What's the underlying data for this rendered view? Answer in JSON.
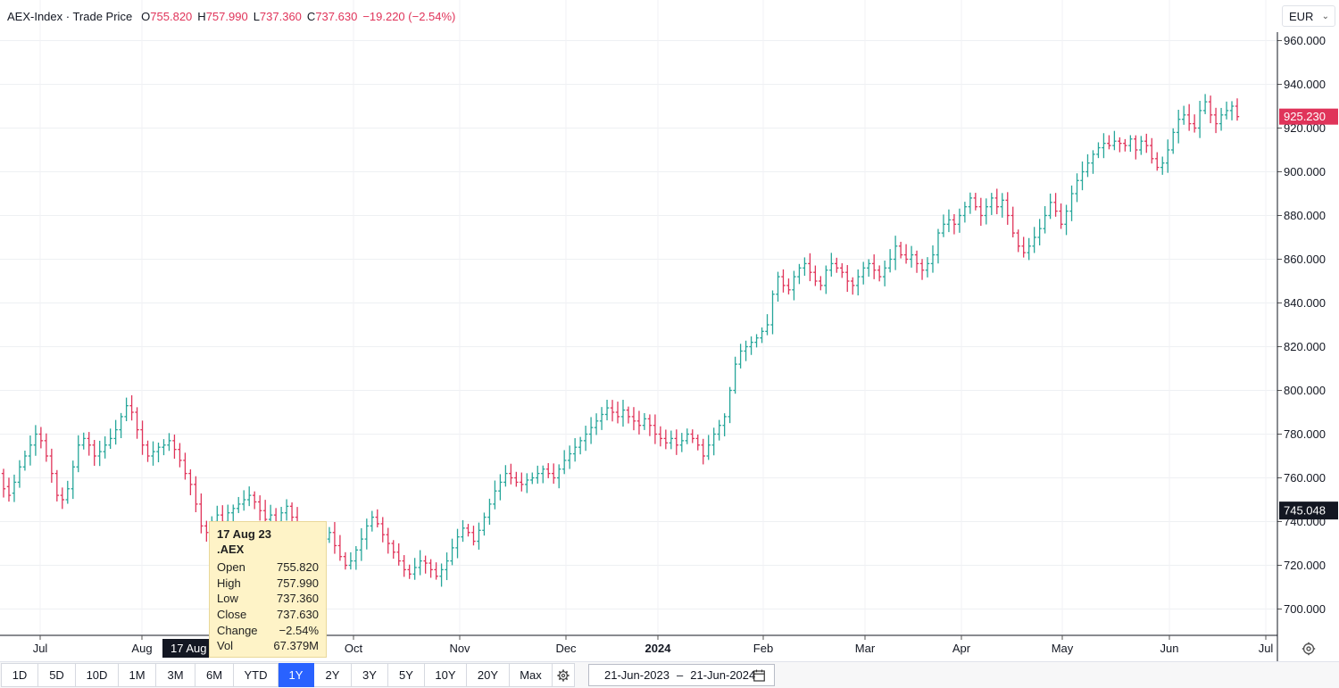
{
  "header": {
    "title": "AEX-Index · Trade Price",
    "open_key": "O",
    "open_val": "755.820",
    "high_key": "H",
    "high_val": "757.990",
    "low_key": "L",
    "low_val": "737.360",
    "close_key": "C",
    "close_val": "737.630",
    "change": "−19.220 (−2.54%)"
  },
  "currency": {
    "value": "EUR",
    "icon": "chevron-down-icon"
  },
  "tooltip": {
    "date": "17 Aug 23",
    "symbol": ".AEX",
    "rows": [
      {
        "label": "Open",
        "value": "755.820"
      },
      {
        "label": "High",
        "value": "757.990"
      },
      {
        "label": "Low",
        "value": "737.360"
      },
      {
        "label": "Close",
        "value": "737.630"
      },
      {
        "label": "Change",
        "value": "−2.54%"
      },
      {
        "label": "Vol",
        "value": "67.379M"
      }
    ]
  },
  "crosshair": {
    "x_label": "17 Aug 23"
  },
  "price_labels": {
    "last": "925.230",
    "cursor": "745.048"
  },
  "colors": {
    "up": "#26a69a",
    "down": "#e0345a",
    "accent": "#2962ff",
    "last_label": "#e0345a",
    "cursor_label": "#131722"
  },
  "toolbar": {
    "timeframes": [
      "1D",
      "5D",
      "10D",
      "1M",
      "3M",
      "6M",
      "YTD",
      "1Y",
      "2Y",
      "3Y",
      "5Y",
      "10Y",
      "20Y",
      "Max"
    ],
    "active": "1Y",
    "gear_icon": "gear-icon",
    "date_from": "21-Jun-2023",
    "date_sep": "–",
    "date_to": "21-Jun-2024",
    "calendar_icon": "calendar-icon"
  },
  "settings_icon": "settings-icon",
  "chart_data": {
    "type": "ohlc",
    "title": "AEX-Index · Trade Price",
    "currency": "EUR",
    "ylim": [
      690,
      965
    ],
    "y_ticks": [
      "700.000",
      "720.000",
      "740.000",
      "760.000",
      "780.000",
      "800.000",
      "820.000",
      "840.000",
      "860.000",
      "880.000",
      "900.000",
      "920.000",
      "940.000",
      "960.000"
    ],
    "x_ticks": [
      "Jul",
      "Aug",
      "Oct",
      "Nov",
      "Dec",
      "2024",
      "Feb",
      "Mar",
      "Apr",
      "May",
      "Jun",
      "Jul"
    ],
    "grid": true,
    "series": [
      {
        "name": ".AEX",
        "points": [
          [
            762,
            755
          ],
          [
            756,
            752
          ],
          [
            753,
            758
          ],
          [
            758,
            765
          ],
          [
            765,
            770
          ],
          [
            770,
            775
          ],
          [
            775,
            780
          ],
          [
            780,
            777
          ],
          [
            777,
            770
          ],
          [
            770,
            762
          ],
          [
            762,
            752
          ],
          [
            752,
            750
          ],
          [
            750,
            755
          ],
          [
            755,
            765
          ],
          [
            765,
            775
          ],
          [
            775,
            778
          ],
          [
            778,
            775
          ],
          [
            775,
            770
          ],
          [
            770,
            772
          ],
          [
            772,
            775
          ],
          [
            775,
            778
          ],
          [
            778,
            782
          ],
          [
            782,
            788
          ],
          [
            788,
            793
          ],
          [
            793,
            790
          ],
          [
            790,
            782
          ],
          [
            782,
            775
          ],
          [
            775,
            770
          ],
          [
            770,
            772
          ],
          [
            772,
            774
          ],
          [
            774,
            775
          ],
          [
            775,
            777
          ],
          [
            777,
            773
          ],
          [
            773,
            768
          ],
          [
            768,
            762
          ],
          [
            762,
            757
          ],
          [
            757,
            748
          ],
          [
            748,
            738
          ],
          [
            738,
            735
          ],
          [
            735,
            740
          ],
          [
            740,
            743
          ],
          [
            743,
            740
          ],
          [
            740,
            744
          ],
          [
            744,
            746
          ],
          [
            746,
            748
          ],
          [
            748,
            750
          ],
          [
            750,
            752
          ],
          [
            752,
            749
          ],
          [
            749,
            745
          ],
          [
            745,
            741
          ],
          [
            741,
            743
          ],
          [
            743,
            740
          ],
          [
            740,
            744
          ],
          [
            744,
            747
          ],
          [
            747,
            742
          ],
          [
            742,
            736
          ],
          [
            736,
            730
          ],
          [
            730,
            725
          ],
          [
            725,
            722
          ],
          [
            722,
            726
          ],
          [
            726,
            732
          ],
          [
            732,
            735
          ],
          [
            735,
            729
          ],
          [
            729,
            724
          ],
          [
            724,
            720
          ],
          [
            720,
            722
          ],
          [
            722,
            727
          ],
          [
            727,
            732
          ],
          [
            732,
            738
          ],
          [
            738,
            742
          ],
          [
            742,
            739
          ],
          [
            739,
            734
          ],
          [
            734,
            730
          ],
          [
            730,
            726
          ],
          [
            726,
            722
          ],
          [
            722,
            718
          ],
          [
            718,
            716
          ],
          [
            716,
            719
          ],
          [
            719,
            722
          ],
          [
            722,
            721
          ],
          [
            721,
            718
          ],
          [
            718,
            715
          ],
          [
            715,
            718
          ],
          [
            718,
            722
          ],
          [
            722,
            728
          ],
          [
            728,
            733
          ],
          [
            733,
            737
          ],
          [
            737,
            735
          ],
          [
            735,
            731
          ],
          [
            731,
            736
          ],
          [
            736,
            742
          ],
          [
            742,
            748
          ],
          [
            748,
            754
          ],
          [
            754,
            758
          ],
          [
            758,
            762
          ],
          [
            762,
            760
          ],
          [
            760,
            758
          ],
          [
            758,
            757
          ],
          [
            757,
            759
          ],
          [
            759,
            760
          ],
          [
            760,
            762
          ],
          [
            762,
            764
          ],
          [
            764,
            762
          ],
          [
            762,
            760
          ],
          [
            760,
            764
          ],
          [
            764,
            768
          ],
          [
            768,
            771
          ],
          [
            771,
            774
          ],
          [
            774,
            777
          ],
          [
            777,
            780
          ],
          [
            780,
            783
          ],
          [
            783,
            786
          ],
          [
            786,
            789
          ],
          [
            789,
            792
          ],
          [
            792,
            790
          ],
          [
            790,
            788
          ],
          [
            788,
            791
          ],
          [
            791,
            788
          ],
          [
            788,
            786
          ],
          [
            786,
            784
          ],
          [
            784,
            787
          ],
          [
            787,
            784
          ],
          [
            784,
            780
          ],
          [
            780,
            778
          ],
          [
            778,
            776
          ],
          [
            776,
            778
          ],
          [
            778,
            775
          ],
          [
            775,
            777
          ],
          [
            777,
            780
          ],
          [
            780,
            778
          ],
          [
            778,
            775
          ],
          [
            775,
            770
          ],
          [
            770,
            775
          ],
          [
            775,
            780
          ],
          [
            780,
            784
          ],
          [
            784,
            788
          ],
          [
            788,
            800
          ],
          [
            800,
            812
          ],
          [
            812,
            818
          ],
          [
            818,
            820
          ],
          [
            820,
            822
          ],
          [
            822,
            824
          ],
          [
            824,
            827
          ],
          [
            827,
            830
          ],
          [
            830,
            844
          ],
          [
            844,
            852
          ],
          [
            852,
            848
          ],
          [
            848,
            846
          ],
          [
            846,
            852
          ],
          [
            852,
            856
          ],
          [
            856,
            858
          ],
          [
            858,
            854
          ],
          [
            854,
            850
          ],
          [
            850,
            848
          ],
          [
            848,
            855
          ],
          [
            855,
            858
          ],
          [
            858,
            856
          ],
          [
            856,
            854
          ],
          [
            854,
            850
          ],
          [
            850,
            848
          ],
          [
            848,
            852
          ],
          [
            852,
            856
          ],
          [
            856,
            858
          ],
          [
            858,
            855
          ],
          [
            855,
            852
          ],
          [
            852,
            856
          ],
          [
            856,
            860
          ],
          [
            860,
            866
          ],
          [
            866,
            862
          ],
          [
            862,
            860
          ],
          [
            860,
            862
          ],
          [
            862,
            858
          ],
          [
            858,
            855
          ],
          [
            855,
            858
          ],
          [
            858,
            862
          ],
          [
            862,
            872
          ],
          [
            872,
            876
          ],
          [
            876,
            878
          ],
          [
            878,
            876
          ],
          [
            876,
            880
          ],
          [
            880,
            884
          ],
          [
            884,
            888
          ],
          [
            888,
            884
          ],
          [
            884,
            880
          ],
          [
            880,
            884
          ],
          [
            884,
            888
          ],
          [
            888,
            884
          ],
          [
            884,
            887
          ],
          [
            887,
            880
          ],
          [
            880,
            872
          ],
          [
            872,
            866
          ],
          [
            866,
            863
          ],
          [
            863,
            866
          ],
          [
            866,
            870
          ],
          [
            870,
            874
          ],
          [
            874,
            880
          ],
          [
            880,
            886
          ],
          [
            886,
            882
          ],
          [
            882,
            876
          ],
          [
            876,
            882
          ],
          [
            882,
            890
          ],
          [
            890,
            896
          ],
          [
            896,
            900
          ],
          [
            900,
            904
          ],
          [
            904,
            908
          ],
          [
            908,
            911
          ],
          [
            911,
            913
          ],
          [
            913,
            912
          ],
          [
            912,
            914
          ],
          [
            914,
            913
          ],
          [
            913,
            912
          ],
          [
            912,
            915
          ],
          [
            915,
            910
          ],
          [
            910,
            914
          ],
          [
            914,
            912
          ],
          [
            912,
            906
          ],
          [
            906,
            902
          ],
          [
            902,
            904
          ],
          [
            904,
            910
          ],
          [
            910,
            918
          ],
          [
            918,
            924
          ],
          [
            924,
            926
          ],
          [
            926,
            922
          ],
          [
            922,
            920
          ],
          [
            920,
            928
          ],
          [
            928,
            932
          ],
          [
            932,
            926
          ],
          [
            926,
            922
          ],
          [
            922,
            926
          ],
          [
            926,
            928
          ],
          [
            928,
            930
          ],
          [
            930,
            925.23
          ]
        ]
      }
    ]
  }
}
